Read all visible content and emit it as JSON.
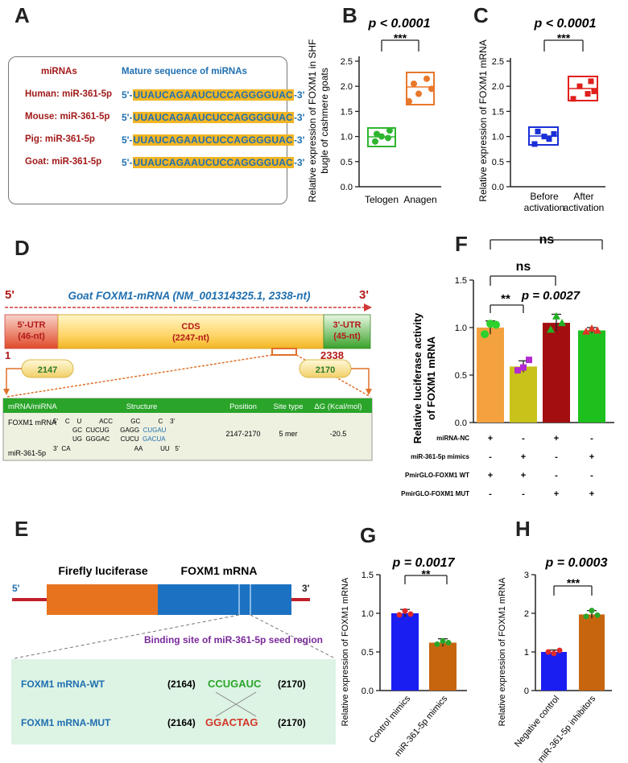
{
  "panel_labels": {
    "A": "A",
    "B": "B",
    "C": "C",
    "D": "D",
    "E": "E",
    "F": "F",
    "G": "G",
    "H": "H"
  },
  "panelA": {
    "header_left": "miRNAs",
    "header_right": "Mature sequence of miRNAs",
    "rows": [
      {
        "name": "Human: miR-361-5p",
        "prefix": "5'-",
        "seq": "UUAUCAGAAUCUCCAGGGGUAC",
        "suffix": "-3'"
      },
      {
        "name": "Mouse: miR-361-5p",
        "prefix": "5'-",
        "seq": "UUAUCAGAAUCUCCAGGGGUAC",
        "suffix": "-3'"
      },
      {
        "name": "Pig: miR-361-5p",
        "prefix": "5'-",
        "seq": "UUAUCAGAAUCUCCAGGGGUAC",
        "suffix": "-3'"
      },
      {
        "name": "Goat: miR-361-5p",
        "prefix": "5'-",
        "seq": "UUAUCAGAAUCUCCAGGGGUAC",
        "suffix": "-3'"
      }
    ]
  },
  "panelB": {
    "pvalue": "p < 0.0001",
    "stars": "***",
    "ylabel_line1": "Relative expression of FOXM1 in SHF",
    "ylabel_line2": "bugle of cashmere goats",
    "yticks": [
      "0.0",
      "0.5",
      "1.0",
      "1.5",
      "2.0",
      "2.5"
    ],
    "categories": [
      "Telogen",
      "Anagen"
    ],
    "colors": [
      "#2fb52f",
      "#e8782a"
    ]
  },
  "panelC": {
    "pvalue": "p < 0.0001",
    "stars": "***",
    "ylabel": "Relative expression of FOXM1 mRNA",
    "yticks": [
      "0.0",
      "0.5",
      "1.0",
      "1.5",
      "2.0",
      "2.5"
    ],
    "cat1_line1": "Before",
    "cat1_line2": "activation",
    "cat2_line1": "After",
    "cat2_line2": "activation",
    "colors": [
      "#1a2fd6",
      "#e0201c"
    ]
  },
  "panelD": {
    "five": "5'",
    "three": "3'",
    "title": "Goat FOXM1-mRNA (NM_001314325.1, 2338-nt)",
    "utr5": "5'-UTR",
    "utr5_len": "(46-nt)",
    "cds": "CDS",
    "cds_len": "(2247-nt)",
    "utr3": "3'-UTR",
    "utr3_len": "(45-nt)",
    "pos_start": "1",
    "pos_end": "2338",
    "site_a": "2147",
    "site_b": "2170",
    "table_headers": [
      "mRNA/miRNA",
      "Structure",
      "Position",
      "Site type",
      "ΔG (Kcal/mol)"
    ],
    "row1_name": "FOXM1 mRNA",
    "row2_name": "miR-361-5p",
    "s_l1": "5'    C    U          ACC          GC          C    3'",
    "s_l2a": "GC  CUCUG      GAGG  ",
    "s_l2b": "CUGAU",
    "s_l3a": "UG  GGGAC      CUCU  ",
    "s_l3b": "GACUA",
    "s_l4": "3'  CA                                    AA          UU   5'",
    "position": "2147-2170",
    "site_type": "5 mer",
    "dg": "-20.5"
  },
  "panelE": {
    "five": "5'",
    "three": "3'",
    "firefly": "Firefly luciferase",
    "foxm1": "FOXM1 mRNA",
    "binding_title": "Binding site of miR-361-5p seed region",
    "wt_name": "FOXM1 mRNA-WT",
    "wt_l": "(2164)",
    "wt_seq": "CCUGAUC",
    "wt_r": "(2170)",
    "mut_name": "FOXM1 mRNA-MUT",
    "mut_l": "(2164)",
    "mut_seq": "GGACTAG",
    "mut_r": "(2170)"
  },
  "panelF": {
    "ns_top": "ns",
    "ns_mid": "ns",
    "stars": "**",
    "pvalue": "p = 0.0027",
    "ylabel_line1": "Relative luciferase activity",
    "ylabel_line2": "of FOXM1 mRNA",
    "yticks": [
      "0.0",
      "0.5",
      "1.0",
      "1.5"
    ],
    "rows": [
      {
        "label": "miRNA-NC",
        "signs": [
          "+",
          "-",
          "+",
          "-"
        ]
      },
      {
        "label": "miR-361-5p mimics",
        "signs": [
          "-",
          "+",
          "-",
          "+"
        ]
      },
      {
        "label": "PmirGLO-FOXM1 WT",
        "signs": [
          "+",
          "+",
          "-",
          "-"
        ]
      },
      {
        "label": "PmirGLO-FOXM1 MUT",
        "signs": [
          "-",
          "-",
          "+",
          "+"
        ]
      }
    ]
  },
  "panelG": {
    "pvalue": "p = 0.0017",
    "stars": "**",
    "ylabel": "Relative expression of FOXM1 mRNA",
    "yticks": [
      "0.0",
      "0.5",
      "1.0",
      "1.5"
    ],
    "categories": [
      "Control mimics",
      "miR-361-5p mimics"
    ]
  },
  "panelH": {
    "pvalue": "p = 0.0003",
    "stars": "***",
    "ylabel": "Relative expression of FOXM1 mRNA",
    "yticks": [
      "0",
      "1",
      "2",
      "3"
    ],
    "categories": [
      "Negative control",
      "miR-361-5p inhibitors"
    ]
  },
  "chart_data": [
    {
      "panel": "B",
      "type": "box",
      "categories": [
        "Telogen",
        "Anagen"
      ],
      "ylim": [
        0,
        2.5
      ],
      "series": [
        {
          "values": [
            0.9,
            0.97,
            1.05,
            1.12,
            1.0
          ]
        },
        {
          "values": [
            1.7,
            1.85,
            1.95,
            2.05,
            2.15
          ]
        }
      ]
    },
    {
      "panel": "C",
      "type": "box",
      "categories": [
        "Before activation",
        "After activation"
      ],
      "ylim": [
        0,
        2.5
      ],
      "series": [
        {
          "values": [
            0.85,
            0.95,
            1.0,
            1.05,
            1.1
          ]
        },
        {
          "values": [
            1.75,
            1.85,
            1.9,
            2.0,
            2.1
          ]
        }
      ]
    },
    {
      "panel": "F",
      "type": "bar",
      "ylim": [
        0,
        1.5
      ],
      "values": [
        1.0,
        0.59,
        1.05,
        0.97
      ],
      "errors": [
        0.07,
        0.06,
        0.09,
        0.03
      ],
      "colors": [
        "#f4a23f",
        "#c8c21a",
        "#a30f10",
        "#1ec01e"
      ],
      "points": [
        [
          0.93,
          1.04,
          1.03
        ],
        [
          0.55,
          0.58,
          0.66
        ],
        [
          0.98,
          1.12,
          1.05
        ],
        [
          0.96,
          0.99,
          0.97
        ]
      ],
      "point_colors": [
        "#2ed12e",
        "#b32ad1",
        "#22b122",
        "#e0342a"
      ]
    },
    {
      "panel": "G",
      "type": "bar",
      "categories": [
        "Control mimics",
        "miR-361-5p mimics"
      ],
      "ylim": [
        0,
        1.5
      ],
      "values": [
        1.0,
        0.62
      ],
      "errors": [
        0.05,
        0.05
      ],
      "colors": [
        "#1a1ef0",
        "#c7650f"
      ],
      "points": [
        [
          0.98,
          1.03,
          0.99
        ],
        [
          0.6,
          0.64,
          0.62
        ]
      ],
      "point_colors": [
        "#e02a2a",
        "#2aa52a"
      ]
    },
    {
      "panel": "H",
      "type": "bar",
      "categories": [
        "Negative control",
        "miR-361-5p inhibitors"
      ],
      "ylim": [
        0,
        3
      ],
      "values": [
        1.0,
        1.97
      ],
      "errors": [
        0.05,
        0.1
      ],
      "colors": [
        "#1a1ef0",
        "#c7650f"
      ],
      "points": [
        [
          1.0,
          0.96,
          1.04
        ],
        [
          1.92,
          2.07,
          1.95
        ]
      ],
      "point_colors": [
        "#e02a2a",
        "#2aa52a"
      ]
    }
  ]
}
